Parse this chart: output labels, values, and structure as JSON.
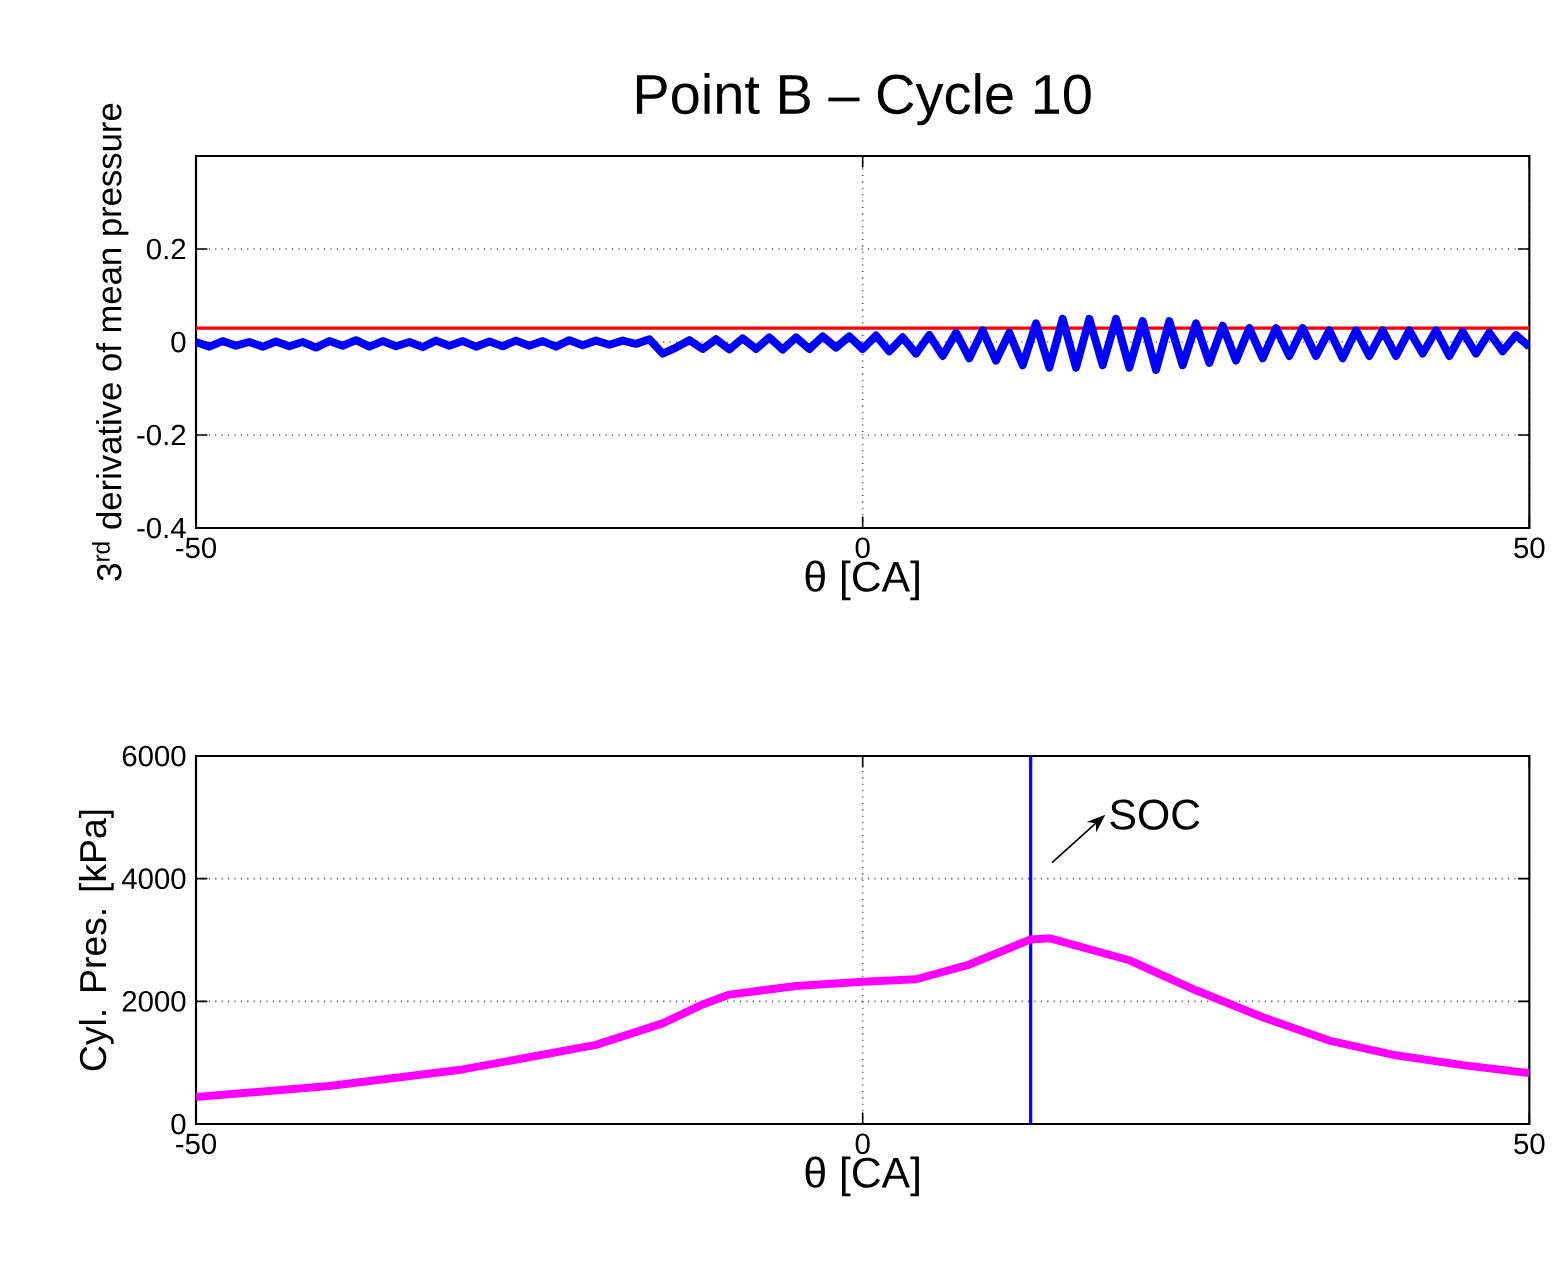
{
  "chart_data": [
    {
      "type": "line",
      "title": "Point B – Cycle 10",
      "xlabel": "θ [CA]",
      "ylabel": "3$^{rd}$ derivative of mean pressure",
      "xlim": [
        -50,
        50
      ],
      "ylim": [
        -0.4,
        0.4
      ],
      "xticks": [
        -50,
        0,
        50
      ],
      "yticks": [
        -0.4,
        -0.2,
        0,
        0.2
      ],
      "grid": true,
      "line_style": "solid",
      "ref_lines": [
        {
          "axis": "y",
          "value": 0.03,
          "color": "#ff0000"
        }
      ],
      "series": [
        {
          "color": "#0000ff",
          "x": [
            -50,
            -49,
            -48,
            -47,
            -46,
            -45,
            -44,
            -43,
            -42,
            -41,
            -40,
            -39,
            -38,
            -37,
            -36,
            -35,
            -34,
            -33,
            -32,
            -31,
            -30,
            -29,
            -28,
            -27,
            -26,
            -25,
            -24,
            -23,
            -22,
            -21,
            -20,
            -19,
            -18,
            -17,
            -16,
            -15,
            -14,
            -13,
            -12,
            -11,
            -10,
            -9,
            -8,
            -7,
            -6,
            -5,
            -4,
            -3,
            -2,
            -1,
            0,
            1,
            2,
            3,
            4,
            5,
            6,
            7,
            8,
            9,
            10,
            11,
            12,
            13,
            14,
            15,
            16,
            17,
            18,
            19,
            20,
            21,
            22,
            23,
            24,
            25,
            26,
            27,
            28,
            29,
            30,
            31,
            32,
            33,
            34,
            35,
            36,
            37,
            38,
            39,
            40,
            41,
            42,
            43,
            44,
            45,
            46,
            47,
            48,
            49,
            50
          ],
          "values": [
            0.0,
            -0.01,
            0.002,
            -0.008,
            0.0,
            -0.01,
            0.001,
            -0.009,
            0.0,
            -0.012,
            0.002,
            -0.008,
            0.004,
            -0.01,
            0.002,
            -0.009,
            0.0,
            -0.011,
            0.003,
            -0.008,
            0.002,
            -0.01,
            0.001,
            -0.009,
            0.003,
            -0.008,
            0.002,
            -0.01,
            0.004,
            -0.007,
            0.003,
            -0.006,
            0.003,
            -0.004,
            0.006,
            -0.025,
            -0.012,
            0.004,
            -0.015,
            0.006,
            -0.016,
            0.008,
            -0.015,
            0.01,
            -0.016,
            0.01,
            -0.015,
            0.012,
            -0.012,
            0.012,
            -0.015,
            0.014,
            -0.02,
            0.01,
            -0.025,
            0.015,
            -0.03,
            0.02,
            -0.035,
            0.025,
            -0.04,
            0.02,
            -0.05,
            0.04,
            -0.055,
            0.05,
            -0.055,
            0.05,
            -0.05,
            0.05,
            -0.055,
            0.045,
            -0.06,
            0.045,
            -0.05,
            0.04,
            -0.045,
            0.035,
            -0.04,
            0.03,
            -0.035,
            0.03,
            -0.03,
            0.03,
            -0.03,
            0.025,
            -0.035,
            0.025,
            -0.03,
            0.025,
            -0.03,
            0.025,
            -0.025,
            0.025,
            -0.03,
            0.022,
            -0.025,
            0.02,
            -0.02,
            0.015,
            -0.01
          ]
        }
      ]
    },
    {
      "type": "line",
      "xlabel": "θ [CA]",
      "ylabel": "Cyl. Pres. [kPa]",
      "xlim": [
        -50,
        50
      ],
      "ylim": [
        0,
        6000
      ],
      "xticks": [
        -50,
        0,
        50
      ],
      "yticks": [
        0,
        2000,
        4000,
        6000
      ],
      "grid": true,
      "line_style": "solid",
      "ref_lines": [
        {
          "axis": "x",
          "value": 12.6,
          "color": "#0000ff"
        }
      ],
      "annotations": [
        "SOC"
      ],
      "series": [
        {
          "color": "#ff00ff",
          "x": [
            -50,
            -40,
            -30,
            -20,
            -15,
            -12,
            -10,
            -5,
            0,
            4,
            8,
            12.6,
            14,
            20,
            25,
            30,
            35,
            40,
            45,
            50
          ],
          "values": [
            440,
            620,
            890,
            1290,
            1640,
            1950,
            2110,
            2250,
            2320,
            2360,
            2600,
            3010,
            3030,
            2670,
            2180,
            1740,
            1360,
            1120,
            960,
            830
          ]
        }
      ]
    }
  ]
}
